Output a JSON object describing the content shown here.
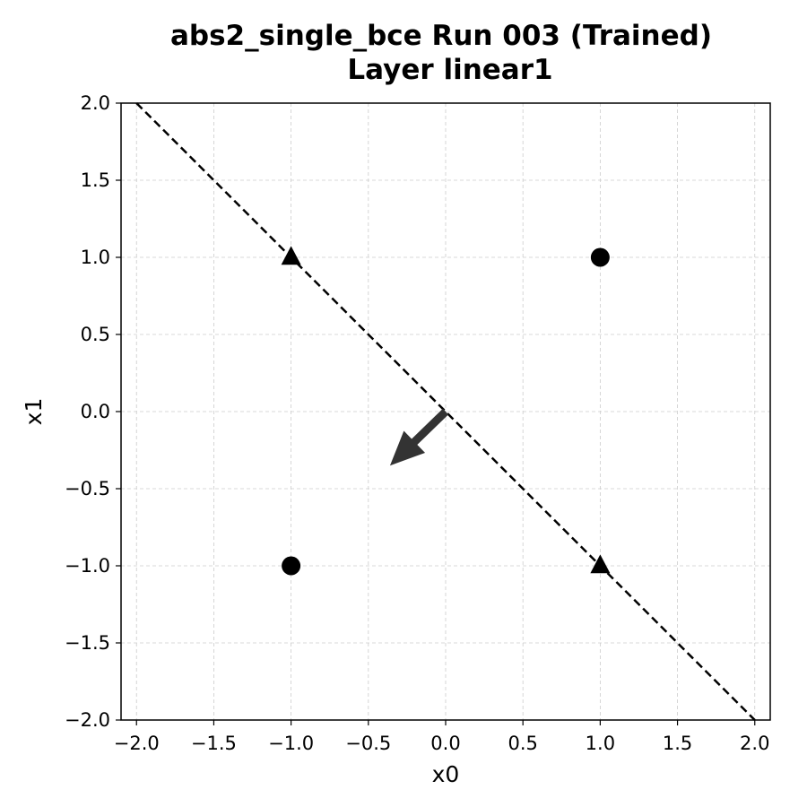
{
  "chart_data": {
    "type": "scatter",
    "title": [
      "abs2_single_bce Run 003 (Trained)",
      "Layer linear1"
    ],
    "xlabel": "x0",
    "ylabel": "x1",
    "xlim": [
      -2.1,
      2.1
    ],
    "ylim": [
      -2.0,
      2.0
    ],
    "x_ticks": [
      -2.0,
      -1.5,
      -1.0,
      -0.5,
      0.0,
      0.5,
      1.0,
      1.5,
      2.0
    ],
    "y_ticks": [
      -2.0,
      -1.5,
      -1.0,
      -0.5,
      0.0,
      0.5,
      1.0,
      1.5,
      2.0
    ],
    "x_tick_labels": [
      "−2.0",
      "−1.5",
      "−1.0",
      "−0.5",
      "0.0",
      "0.5",
      "1.0",
      "1.5",
      "2.0"
    ],
    "y_tick_labels": [
      "2.0",
      "1.5",
      "1.0",
      "0.5",
      "0.0",
      "−0.5",
      "−1.0",
      "−1.5",
      "−2.0"
    ],
    "y_tick_label_values": [
      2.0,
      1.5,
      1.0,
      0.5,
      0.0,
      -0.5,
      -1.0,
      -1.5,
      -2.0
    ],
    "grid": true,
    "points": [
      {
        "x": 1.0,
        "y": 1.0,
        "marker": "circle"
      },
      {
        "x": -1.0,
        "y": -1.0,
        "marker": "circle"
      },
      {
        "x": -1.0,
        "y": 1.0,
        "marker": "triangle"
      },
      {
        "x": 1.0,
        "y": -1.0,
        "marker": "triangle"
      }
    ],
    "boundary_line": {
      "x": [
        -2.0,
        2.0
      ],
      "y": [
        2.0,
        -2.0
      ],
      "style": "dashed"
    },
    "normal_arrow": {
      "from": [
        0.0,
        0.0
      ],
      "to": [
        -0.36,
        -0.35
      ]
    },
    "colors": {
      "marker": "#000000",
      "line": "#000000",
      "arrow": "#333333",
      "grid": "#cccccc"
    }
  }
}
